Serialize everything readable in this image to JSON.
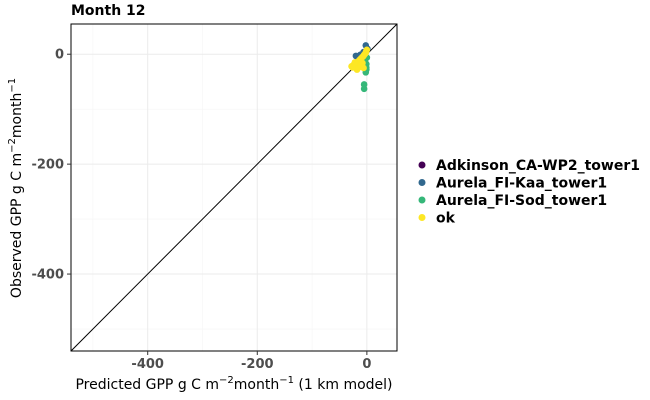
{
  "chart_data": {
    "type": "scatter",
    "title": "Month 12",
    "xlabel": {
      "main": "Predicted GPP g C m",
      "sup1": "−2",
      "mid": "month",
      "sup2": "−1",
      "tail": " (1 km model)"
    },
    "ylabel": {
      "main": "Observed GPP g C m",
      "sup1": "−2",
      "mid": "month",
      "sup2": "−1"
    },
    "xlim": [
      -540,
      55
    ],
    "ylim": [
      -540,
      55
    ],
    "x_ticks": [
      -400,
      -200,
      0
    ],
    "y_ticks": [
      -400,
      -200,
      0
    ],
    "x_tick_labels": [
      "-400",
      "-200",
      "0"
    ],
    "y_tick_labels": [
      "-400",
      "-200",
      "0"
    ],
    "grid": true,
    "identity_line": true,
    "legend_position": "right",
    "series": [
      {
        "name": "Adkinson_CA-WP2_tower1",
        "color": "#440154",
        "points": []
      },
      {
        "name": "Aurela_FI-Kaa_tower1",
        "color": "#31688e",
        "points": [
          [
            -20,
            -3
          ],
          [
            -12,
            -1
          ],
          [
            -2,
            16
          ],
          [
            1,
            10
          ],
          [
            -6,
            4
          ],
          [
            -15,
            -10
          ],
          [
            -3,
            -22
          ]
        ]
      },
      {
        "name": "Aurela_FI-Sod_tower1",
        "color": "#35b779",
        "points": [
          [
            -1,
            -28
          ],
          [
            -2,
            -33
          ],
          [
            -1,
            -24
          ],
          [
            -5,
            -55
          ],
          [
            -5,
            -63
          ],
          [
            -1,
            -18
          ],
          [
            0,
            -6
          ],
          [
            -3,
            -14
          ]
        ]
      },
      {
        "name": "ok",
        "color": "#fde725",
        "points": [
          [
            -28,
            -22
          ],
          [
            -24,
            -19
          ],
          [
            -20,
            -17
          ],
          [
            -17,
            -14
          ],
          [
            -14,
            -11
          ],
          [
            -12,
            -9
          ],
          [
            -10,
            -7
          ],
          [
            -8,
            -5
          ],
          [
            -6,
            -3
          ],
          [
            -5,
            -1
          ],
          [
            -3,
            1
          ],
          [
            -2,
            3
          ],
          [
            -1,
            6
          ],
          [
            0,
            8
          ],
          [
            -18,
            -28
          ],
          [
            -15,
            -24
          ],
          [
            -11,
            -20
          ],
          [
            -8,
            -16
          ],
          [
            -6,
            -25
          ],
          [
            -22,
            -15
          ],
          [
            -26,
            -24
          ]
        ]
      }
    ]
  }
}
